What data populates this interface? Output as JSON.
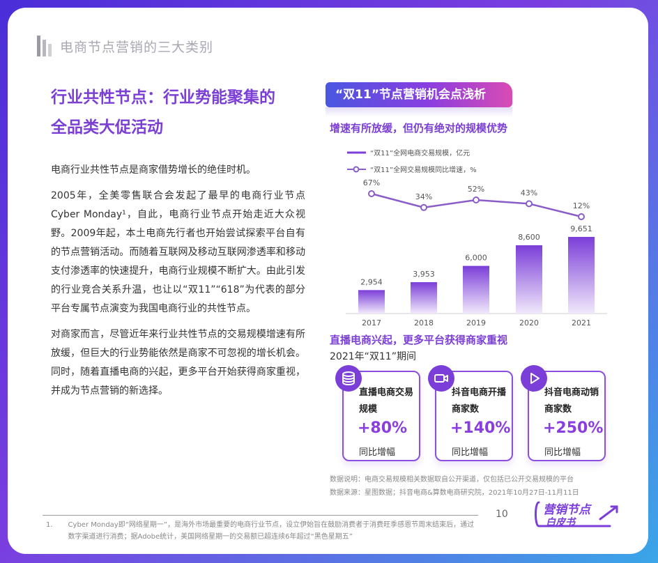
{
  "section": {
    "title": "电商节点营销的三大类别"
  },
  "heading": {
    "line1": "行业共性节点：行业势能聚集的",
    "line2": "全品类大促活动"
  },
  "body": {
    "p1": "电商行业共性节点是商家借势增长的绝佳时机。",
    "p2": "2005年，全美零售联合会发起了最早的电商行业节点Cyber Monday¹，自此，电商行业节点开始走近大众视野。2009年起，本土电商先行者也开始尝试探索平台自有的节点营销活动。而随着互联网及移动互联网渗透率和移动支付渗透率的快速提升，电商行业规模不断扩大。由此引发的行业竞合关系升温，也让以“双11”“618”为代表的部分平台专属节点演变为我国电商行业的共性节点。",
    "p3": "对商家而言，尽管近年来行业共性节点的交易规模增速有所放缓，但巨大的行业势能依然是商家不可忽视的增长机会。同时，随着直播电商的兴起，更多平台开始获得商家重视，并成为节点营销的新选择。"
  },
  "banner": {
    "title": "“双11”节点营销机会点浅析"
  },
  "chart_section": {
    "heading": "增速有所放缓，但仍有绝对的规模优势"
  },
  "chart_data": {
    "type": "bar",
    "categories": [
      "2017",
      "2018",
      "2019",
      "2020",
      "2021"
    ],
    "series": [
      {
        "name": "“双11”全网电商交易规模，亿元",
        "type": "bar",
        "values": [
          2954,
          3953,
          6000,
          8600,
          9651
        ],
        "labels": [
          "2,954",
          "3,953",
          "6,000",
          "8,600",
          "9,651"
        ]
      },
      {
        "name": "“双11”全网交易规模同比增速，%",
        "type": "line",
        "values": [
          67,
          34,
          52,
          43,
          12
        ],
        "labels": [
          "67%",
          "34%",
          "52%",
          "43%",
          "12%"
        ]
      }
    ],
    "title": "",
    "xlabel": "",
    "ylabel": "",
    "legend": "top-left",
    "grid": false,
    "color": "#7b3ed8"
  },
  "live_section": {
    "heading": "直播电商兴起，更多平台获得商家重视",
    "period": "2021年“双11”期间"
  },
  "cards": [
    {
      "title": "直播电商交易规模",
      "value": "+80%",
      "note": "同比增幅",
      "icon": "coins-icon"
    },
    {
      "title": "抖音电商开播商家数",
      "value": "+140%",
      "note": "同比增幅",
      "icon": "video-camera-icon"
    },
    {
      "title": "抖音电商动销商家数",
      "value": "+250%",
      "note": "同比增幅",
      "icon": "play-icon"
    }
  ],
  "data_notes": {
    "line1": "数据说明：电商交易规模相关数据取自公开渠道，仅包括已公开交易规模的平台",
    "line2": "数据来源：星图数据；抖音电商&算数电商研究院，2021年10月27日-11月11日"
  },
  "footer": {
    "page_number": "10",
    "footnote_index": "1.",
    "footnote": "Cyber Monday即“网络星期一”，是海外市场最重要的电商行业节点，设立伊始旨在鼓励消费者于消费旺季感恩节周末结束后，通过数字渠道进行消费；据Adobe统计，美国网络星期一的交易额已超连续6年超过“黑色星期五”"
  },
  "logo": {
    "line1": "营销节点",
    "line2": "白皮书"
  },
  "colors": {
    "accent": "#7b3ed8",
    "line": "#8a5cc8",
    "bar_top": "#7b3ed8"
  }
}
